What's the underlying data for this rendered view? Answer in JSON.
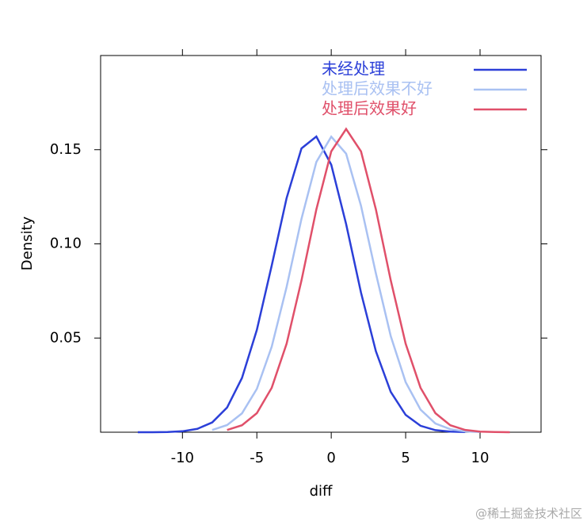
{
  "chart_data": {
    "type": "line",
    "x_label": "diff",
    "y_label": "Density",
    "xlim": [
      -15.5,
      14.1
    ],
    "ylim": [
      0,
      0.2
    ],
    "xticks": [
      -10,
      -5,
      0,
      5,
      10
    ],
    "yticks": [
      0.05,
      {
        "value": 0.1,
        "label": "0.10"
      },
      0.15
    ],
    "legend": "top-right",
    "series": [
      {
        "name": "未经处理",
        "color": "#2b3fd8",
        "x": [
          -13,
          -12,
          -11,
          -10,
          -9,
          -8,
          -7,
          -6,
          -5,
          -4,
          -3,
          -2,
          -1,
          0,
          1,
          2,
          3,
          4,
          5,
          6,
          7,
          8,
          9
        ],
        "values": [
          0.0,
          0.0,
          0.0001,
          0.0005,
          0.0018,
          0.0052,
          0.0131,
          0.0288,
          0.0543,
          0.0885,
          0.1243,
          0.1507,
          0.157,
          0.142,
          0.1105,
          0.0741,
          0.043,
          0.0214,
          0.0092,
          0.0034,
          0.0011,
          0.0003,
          0.0001
        ]
      },
      {
        "name": "处理后效果不好",
        "color": "#a9c1f2",
        "x": [
          -8,
          -7,
          -6,
          -5,
          -4,
          -3,
          -2,
          -1,
          0,
          1,
          2,
          3,
          4,
          5,
          6,
          7,
          8,
          9,
          10
        ],
        "values": [
          0.0012,
          0.0038,
          0.01,
          0.023,
          0.0454,
          0.0771,
          0.1133,
          0.1435,
          0.1569,
          0.1479,
          0.1202,
          0.0843,
          0.051,
          0.0266,
          0.012,
          0.0046,
          0.0016,
          0.0004,
          0.0001
        ]
      },
      {
        "name": "处理后效果好",
        "color": "#e0506a",
        "x": [
          -7,
          -6,
          -5,
          -4,
          -3,
          -2,
          -1,
          0,
          1,
          2,
          3,
          4,
          5,
          6,
          7,
          8,
          9,
          10,
          11,
          12
        ],
        "values": [
          0.0012,
          0.0037,
          0.0101,
          0.0236,
          0.047,
          0.0806,
          0.1183,
          0.1491,
          0.161,
          0.1491,
          0.1183,
          0.0806,
          0.047,
          0.0236,
          0.0101,
          0.0037,
          0.0012,
          0.0003,
          0.0001,
          0.0
        ]
      }
    ],
    "watermark": "@稀土掘金技术社区"
  }
}
